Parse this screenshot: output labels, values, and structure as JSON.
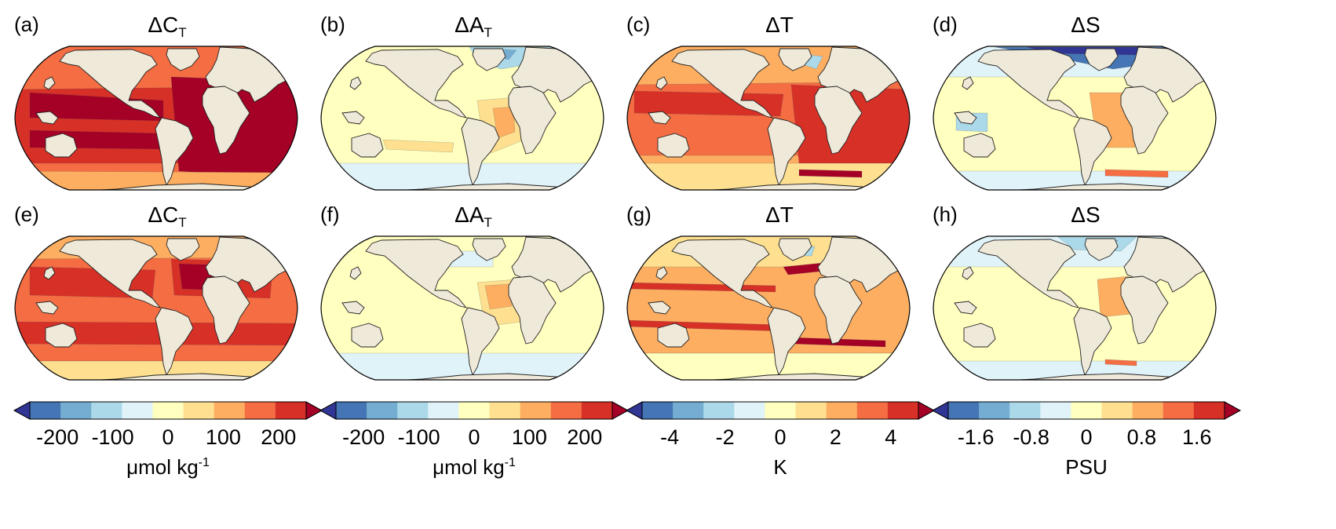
{
  "panels": [
    {
      "letter": "(a)",
      "title_main": "ΔC",
      "title_sub": "T",
      "scheme": "c1"
    },
    {
      "letter": "(b)",
      "title_main": "ΔA",
      "title_sub": "T",
      "scheme": "a1"
    },
    {
      "letter": "(c)",
      "title_main": "ΔT",
      "title_sub": "",
      "scheme": "t1"
    },
    {
      "letter": "(d)",
      "title_main": "ΔS",
      "title_sub": "",
      "scheme": "s1"
    },
    {
      "letter": "(e)",
      "title_main": "ΔC",
      "title_sub": "T",
      "scheme": "c2"
    },
    {
      "letter": "(f)",
      "title_main": "ΔA",
      "title_sub": "T",
      "scheme": "a2"
    },
    {
      "letter": "(g)",
      "title_main": "ΔT",
      "title_sub": "",
      "scheme": "t2"
    },
    {
      "letter": "(h)",
      "title_main": "ΔS",
      "title_sub": "",
      "scheme": "s2"
    }
  ],
  "colorbars": [
    {
      "ticks": [
        "-200",
        "-100",
        "0",
        "100",
        "200"
      ],
      "tick_values": [
        -200,
        -100,
        0,
        100,
        200
      ],
      "range": [
        -250,
        250
      ],
      "unit_main": "μmol kg",
      "unit_sup": "-1"
    },
    {
      "ticks": [
        "-200",
        "-100",
        "0",
        "100",
        "200"
      ],
      "tick_values": [
        -200,
        -100,
        0,
        100,
        200
      ],
      "range": [
        -250,
        250
      ],
      "unit_main": "μmol kg",
      "unit_sup": "-1"
    },
    {
      "ticks": [
        "-4",
        "-2",
        "0",
        "2",
        "4"
      ],
      "tick_values": [
        -4,
        -2,
        0,
        2,
        4
      ],
      "range": [
        -5,
        5
      ],
      "unit_main": "K",
      "unit_sup": ""
    },
    {
      "ticks": [
        "-1.6",
        "-0.8",
        "0",
        "0.8",
        "1.6"
      ],
      "tick_values": [
        -1.6,
        -0.8,
        0,
        0.8,
        1.6
      ],
      "range": [
        -2,
        2
      ],
      "unit_main": "PSU",
      "unit_sup": ""
    }
  ],
  "palette": [
    "#313695",
    "#4575b4",
    "#74add1",
    "#abd9e9",
    "#e0f3f8",
    "#ffffbf",
    "#fee090",
    "#fdae61",
    "#f46d43",
    "#d73027",
    "#a50026"
  ],
  "land_color": "#efe9d9",
  "coast_color": "#222222"
}
